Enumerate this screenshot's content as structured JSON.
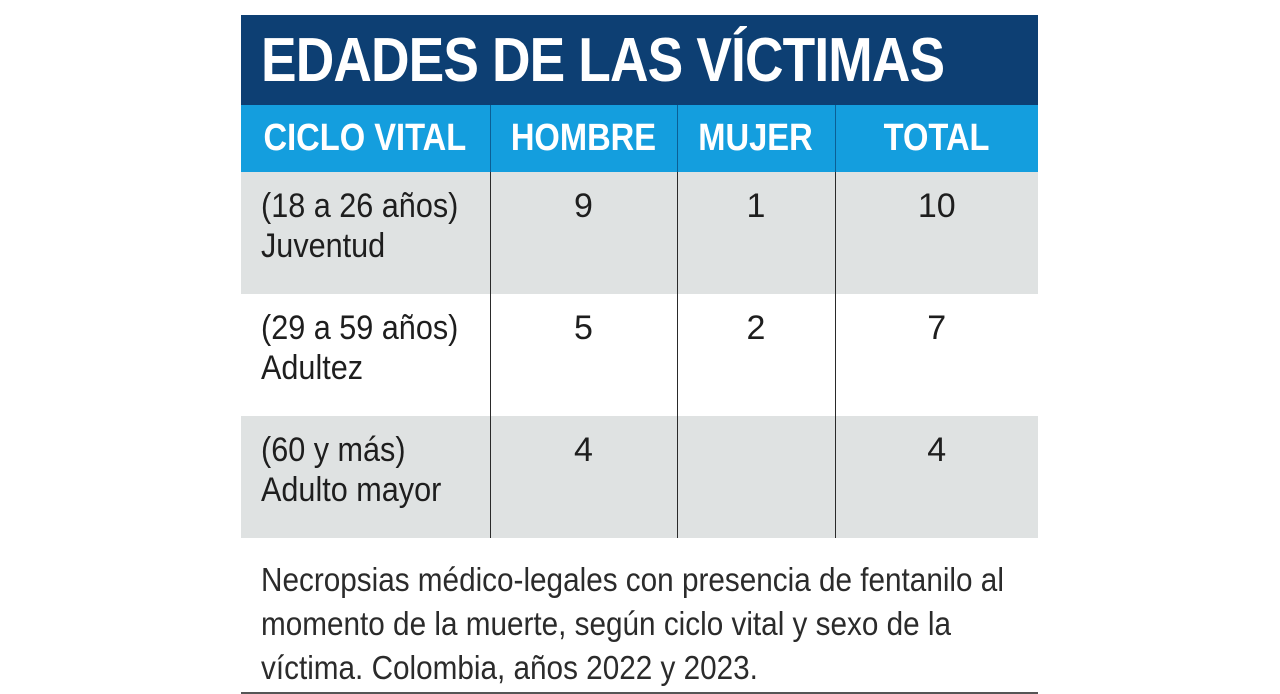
{
  "chart_data": {
    "type": "table",
    "title": "EDADES DE LAS VÍCTIMAS",
    "columns": [
      "CICLO VITAL",
      "HOMBRE",
      "MUJER",
      "TOTAL"
    ],
    "rows": [
      {
        "range": "(18 a 26 años)",
        "label": "Juventud",
        "hombre": "9",
        "mujer": "1",
        "total": "10"
      },
      {
        "range": "(29 a 59 años)",
        "label": "Adultez",
        "hombre": "5",
        "mujer": "2",
        "total": "7"
      },
      {
        "range": "(60 y más)",
        "label": "Adulto mayor",
        "hombre": "4",
        "mujer": "",
        "total": "4"
      }
    ],
    "caption": "Necropsias médico-legales con presencia de fentanilo al momento de la muerte, según ciclo vital y sexo de la víctima. Colombia, años 2022 y 2023."
  },
  "colors": {
    "title_background": "#0d3f73",
    "header_background": "#149ede",
    "row_shade": "#dfe2e2"
  }
}
